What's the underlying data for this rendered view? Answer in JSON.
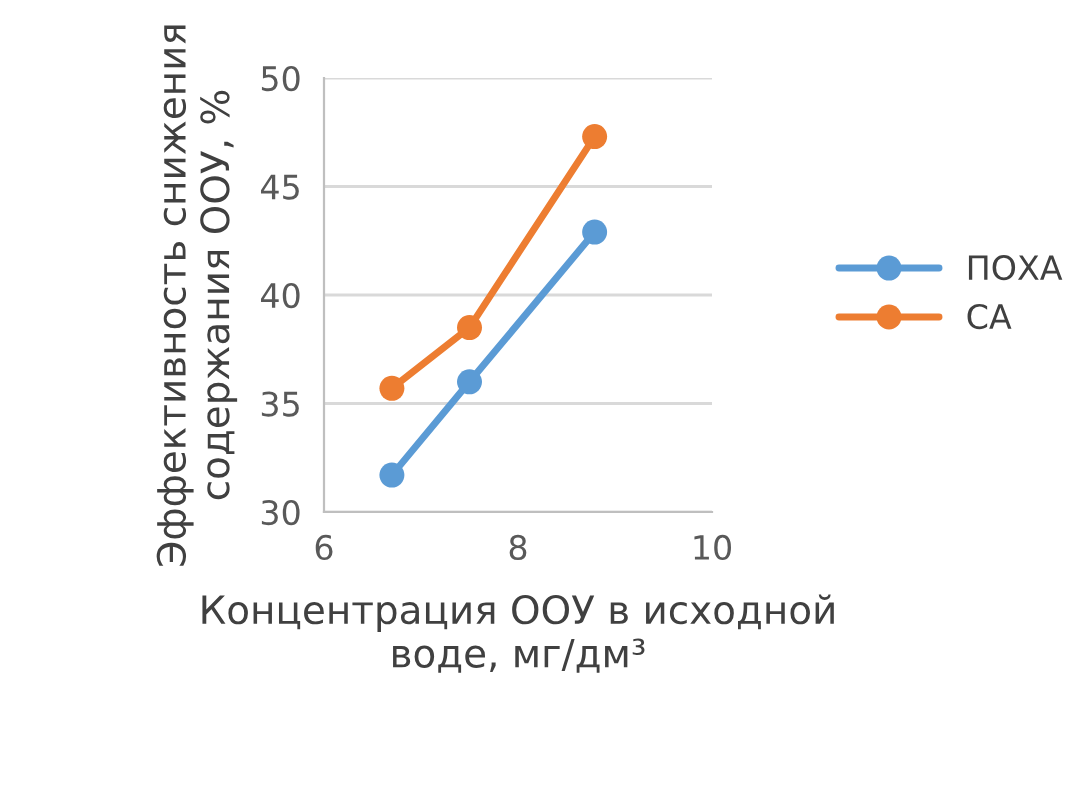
{
  "chart_data": {
    "type": "line",
    "xlabel": "Концентрация ООУ в исходной\nводе, мг/дм³",
    "ylabel": "Эффективность снижения\nсодержания ООУ, %",
    "series": [
      {
        "name": "ПОХА",
        "color": "#5b9bd5",
        "x": [
          6.7,
          7.5,
          8.79
        ],
        "values": [
          31.7,
          36.0,
          42.9
        ]
      },
      {
        "name": "СА",
        "color": "#ed7d31",
        "x": [
          6.7,
          7.5,
          8.79
        ],
        "values": [
          35.7,
          38.5,
          47.3
        ]
      }
    ],
    "xlim": [
      6,
      10
    ],
    "xticks": [
      6,
      8,
      10
    ],
    "ylim": [
      30,
      50
    ],
    "yticks": [
      30,
      35,
      40,
      45,
      50
    ],
    "grid": "y",
    "legend": "right",
    "marker": "circle",
    "line_style": "solid"
  }
}
